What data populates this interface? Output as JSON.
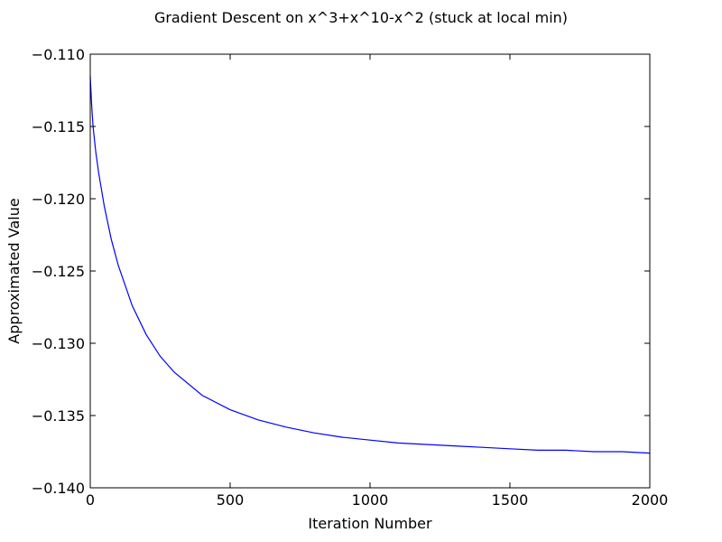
{
  "chart_data": {
    "type": "line",
    "title": "Gradient Descent on x^3+x^10-x^2 (stuck at local min)",
    "xlabel": "Iteration Number",
    "ylabel": "Approximated Value",
    "xlim": [
      0,
      2000
    ],
    "ylim": [
      -0.14,
      -0.11
    ],
    "xticks": [
      0,
      500,
      1000,
      1500,
      2000
    ],
    "xtick_labels": [
      "0",
      "500",
      "1000",
      "1500",
      "2000"
    ],
    "yticks": [
      -0.11,
      -0.115,
      -0.12,
      -0.125,
      -0.13,
      -0.135,
      -0.14
    ],
    "ytick_labels": [
      "−0.110",
      "−0.115",
      "−0.120",
      "−0.125",
      "−0.130",
      "−0.135",
      "−0.140"
    ],
    "grid": false,
    "legend": "none",
    "series": [
      {
        "color": "#0000ff",
        "x": [
          0,
          5,
          10,
          20,
          30,
          50,
          75,
          100,
          150,
          200,
          250,
          300,
          400,
          500,
          600,
          700,
          800,
          900,
          1000,
          1100,
          1200,
          1300,
          1400,
          1500,
          1600,
          1700,
          1800,
          1900,
          2000
        ],
        "y": [
          -0.1115,
          -0.1135,
          -0.115,
          -0.1168,
          -0.1182,
          -0.1205,
          -0.1228,
          -0.1246,
          -0.1274,
          -0.1294,
          -0.1309,
          -0.132,
          -0.1336,
          -0.1346,
          -0.1353,
          -0.1358,
          -0.1362,
          -0.1365,
          -0.1367,
          -0.1369,
          -0.137,
          -0.1371,
          -0.1372,
          -0.1373,
          -0.1374,
          -0.1374,
          -0.1375,
          -0.1375,
          -0.1376
        ]
      }
    ]
  }
}
